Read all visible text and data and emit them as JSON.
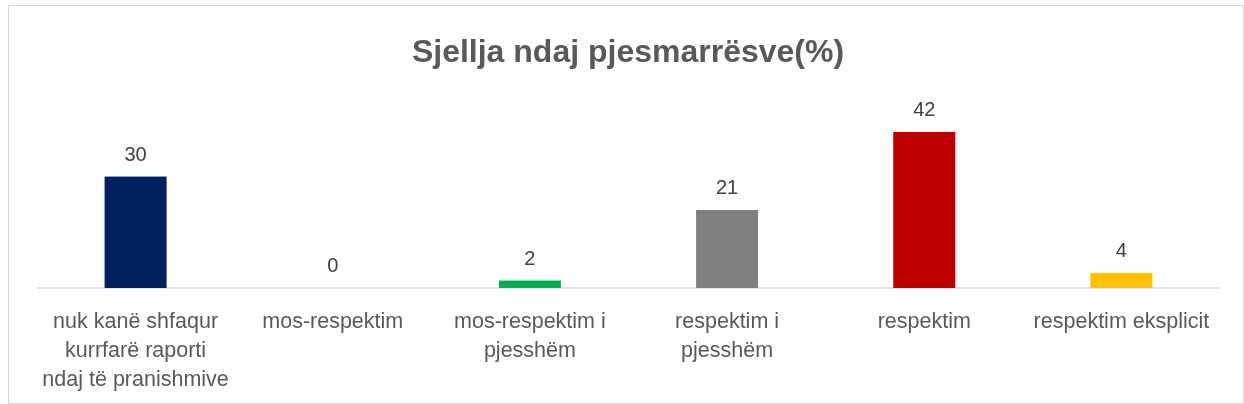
{
  "chart_data": {
    "type": "bar",
    "title": "Sjellja ndaj pjesmarrësve(%)",
    "categories": [
      "nuk kanë shfaqur\nkurrfarë raporti\nndaj të pranishmive",
      "mos-respektim",
      "mos-respektim i\npjesshëm",
      "respektim i\npjesshëm",
      "respektim",
      "respektim eksplicit"
    ],
    "values": [
      30,
      0,
      2,
      21,
      42,
      4
    ],
    "colors": [
      "#002060",
      null,
      "#00b050",
      "#808080",
      "#c00000",
      "#ffc000"
    ],
    "data_labels": true
  }
}
